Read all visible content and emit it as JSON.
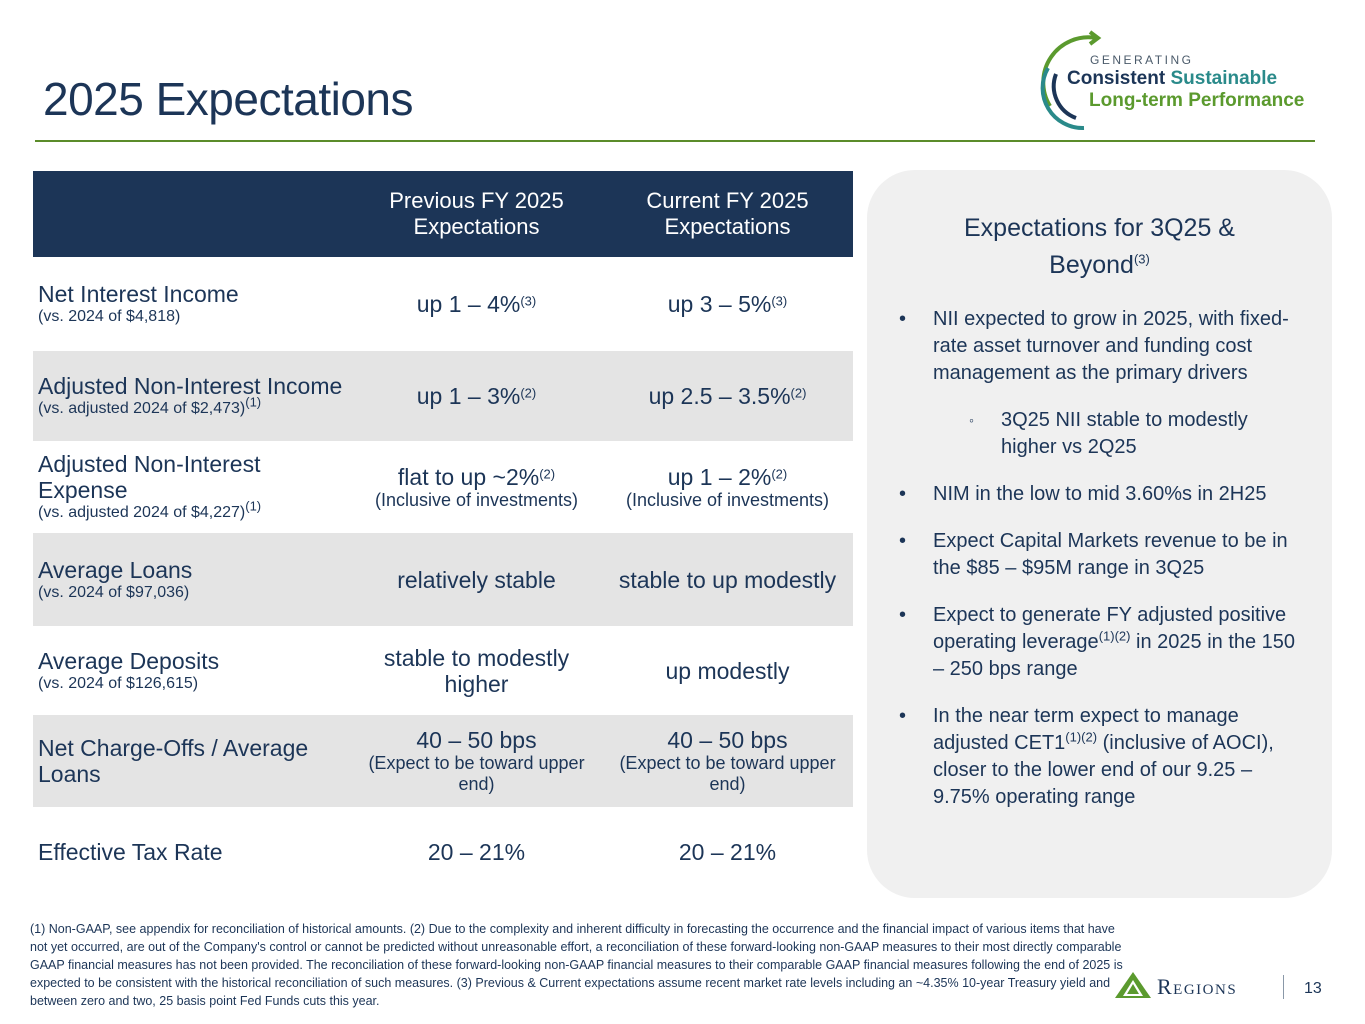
{
  "header": {
    "title": "2025 Expectations"
  },
  "brand": {
    "generating": "GENERATING",
    "consistent": "Consistent",
    "sustainable": "Sustainable",
    "long_term": "Long-term Performance",
    "colors": {
      "navy": "#1c3557",
      "teal": "#2a8a8a",
      "green": "#5b9a2e"
    }
  },
  "table": {
    "headers": [
      "",
      "Previous FY 2025 Expectations",
      "Current FY 2025 Expectations"
    ],
    "rows": [
      {
        "label": "Net Interest Income",
        "sub": "(vs. 2024 of $4,818)",
        "sub_sup": "",
        "prev": "up 1 – 4%",
        "prev_sup": "(3)",
        "prev_note": "",
        "curr": "up 3 – 5%",
        "curr_sup": "(3)",
        "curr_note": ""
      },
      {
        "label": "Adjusted Non-Interest Income",
        "sub": "(vs. adjusted 2024 of $2,473)",
        "sub_sup": "(1)",
        "prev": "up 1 – 3%",
        "prev_sup": "(2)",
        "prev_note": "",
        "curr": "up 2.5 – 3.5%",
        "curr_sup": "(2)",
        "curr_note": ""
      },
      {
        "label": "Adjusted Non-Interest Expense",
        "sub": "(vs. adjusted 2024 of $4,227)",
        "sub_sup": "(1)",
        "prev": "flat to up ~2%",
        "prev_sup": "(2)",
        "prev_note": "(Inclusive of investments)",
        "curr": "up 1 – 2%",
        "curr_sup": "(2)",
        "curr_note": "(Inclusive of investments)"
      },
      {
        "label": "Average Loans",
        "sub": "(vs. 2024 of $97,036)",
        "sub_sup": "",
        "prev": "relatively stable",
        "prev_sup": "",
        "prev_note": "",
        "curr": "stable to up modestly",
        "curr_sup": "",
        "curr_note": ""
      },
      {
        "label": "Average Deposits",
        "sub": "(vs. 2024 of $126,615)",
        "sub_sup": "",
        "prev": "stable to modestly higher",
        "prev_sup": "",
        "prev_note": "",
        "curr": "up modestly",
        "curr_sup": "",
        "curr_note": ""
      },
      {
        "label": "Net Charge-Offs / Average Loans",
        "sub": "",
        "sub_sup": "",
        "prev": "40 – 50 bps",
        "prev_sup": "",
        "prev_note": "(Expect to be toward upper end)",
        "curr": "40 – 50 bps",
        "curr_sup": "",
        "curr_note": "(Expect to be toward upper end)"
      },
      {
        "label": "Effective Tax Rate",
        "sub": "",
        "sub_sup": "",
        "prev": "20 – 21%",
        "prev_sup": "",
        "prev_note": "",
        "curr": "20 – 21%",
        "curr_sup": "",
        "curr_note": ""
      }
    ]
  },
  "panel": {
    "title": "Expectations for 3Q25 & Beyond",
    "title_sup": "(3)",
    "bullet_glyph": "•",
    "sub_bullet_glyph": "◦",
    "bullets": {
      "b1": "NII expected to grow in 2025, with fixed-rate asset turnover and funding cost management as the primary drivers",
      "b1a": "3Q25 NII stable to modestly higher vs 2Q25",
      "b2": "NIM in the  low to mid 3.60%s in 2H25",
      "b3": "Expect Capital Markets revenue to be in the $85 – $95M range in 3Q25",
      "b4_pre": "Expect to generate FY adjusted positive operating leverage",
      "b4_sup": "(1)(2)",
      "b4_post": " in 2025 in the 150 – 250 bps range",
      "b5_pre": "In the near term expect to manage adjusted CET1",
      "b5_sup": "(1)(2)",
      "b5_post": " (inclusive of AOCI), closer to the lower end of our 9.25 – 9.75% operating range"
    }
  },
  "footnote": "(1) Non-GAAP, see appendix for reconciliation of historical amounts. (2) Due to the complexity and inherent difficulty in forecasting the occurrence and the financial impact of various items that have not yet occurred, are out of the Company's control or cannot be predicted without unreasonable effort, a reconciliation of these forward-looking non-GAAP measures to their most directly comparable GAAP financial measures has not been provided. The reconciliation of these forward-looking non-GAAP financial measures to their comparable GAAP financial measures following the end of 2025 is expected to be consistent with the historical reconciliation of such measures. (3) Previous & Current expectations assume recent market rate levels including an ~4.35% 10-year Treasury yield and between zero and two, 25 basis point Fed Funds cuts this year.",
  "footer": {
    "logo_text": "Regions",
    "page_number": "13"
  }
}
